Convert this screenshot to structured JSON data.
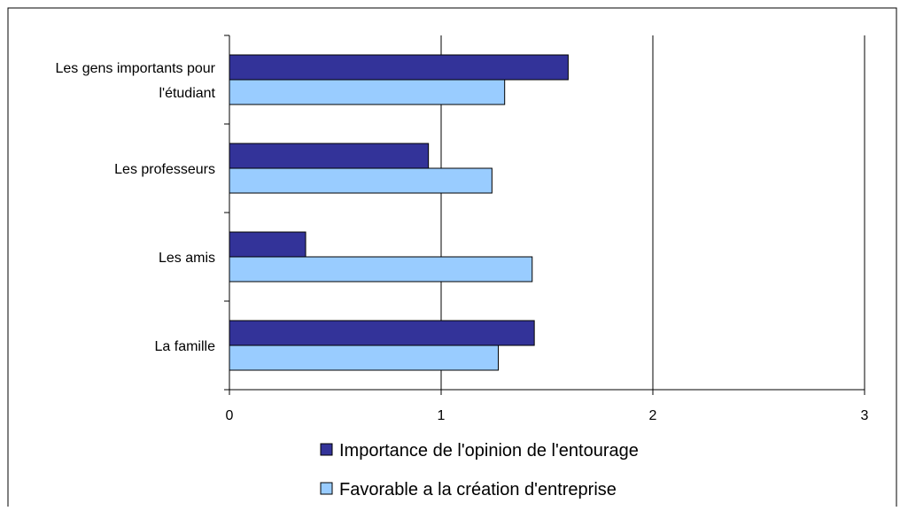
{
  "chart_data": {
    "type": "bar",
    "orientation": "horizontal",
    "categories": [
      [
        "Les gens importants pour",
        "l'étudiant"
      ],
      [
        "Les professeurs"
      ],
      [
        "Les amis"
      ],
      [
        "La famille"
      ]
    ],
    "series": [
      {
        "name": "Importance de l'opinion de l'entourage",
        "color": "#333399",
        "values": [
          1.6,
          0.94,
          0.36,
          1.44
        ]
      },
      {
        "name": "Favorable a la création d'entreprise",
        "color": "#99CCFF",
        "values": [
          1.3,
          1.24,
          1.43,
          1.27
        ]
      }
    ],
    "xlim": [
      0,
      3
    ],
    "xticks": [
      "0",
      "1",
      "2",
      "3"
    ],
    "grid": "vertical",
    "legend_position": "bottom"
  }
}
